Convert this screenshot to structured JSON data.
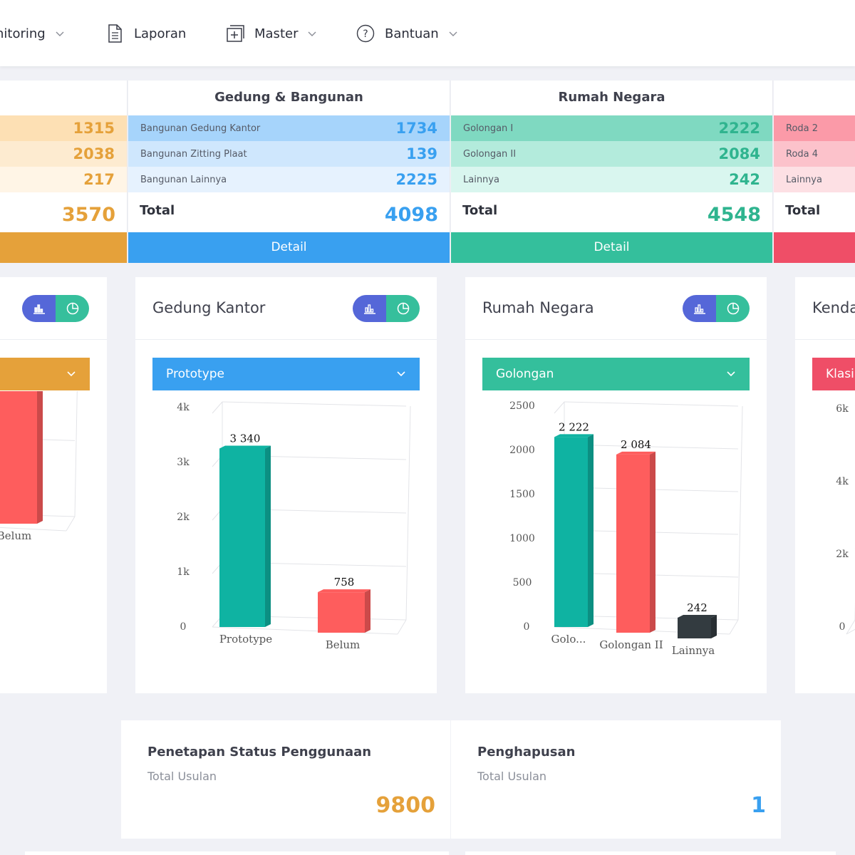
{
  "nav": {
    "monitoring": "nitoring",
    "laporan": "Laporan",
    "master": "Master",
    "bantuan": "Bantuan"
  },
  "summary": {
    "left": {
      "values": [
        "1315",
        "2038",
        "217"
      ],
      "total": "3570"
    },
    "gedung": {
      "title": "Gedung & Bangunan",
      "rows": [
        {
          "label": "Bangunan Gedung Kantor",
          "value": "1734"
        },
        {
          "label": "Bangunan Zitting Plaat",
          "value": "139"
        },
        {
          "label": "Bangunan Lainnya",
          "value": "2225"
        }
      ],
      "total_label": "Total",
      "total": "4098",
      "detail": "Detail"
    },
    "rumah": {
      "title": "Rumah Negara",
      "rows": [
        {
          "label": "Golongan I",
          "value": "2222"
        },
        {
          "label": "Golongan II",
          "value": "2084"
        },
        {
          "label": "Lainnya",
          "value": "242"
        }
      ],
      "total_label": "Total",
      "total": "4548",
      "detail": "Detail"
    },
    "kendaraan": {
      "rows": [
        {
          "label": "Roda 2"
        },
        {
          "label": "Roda 4"
        },
        {
          "label": "Lainnya"
        }
      ],
      "total_label": "Total"
    }
  },
  "charts": {
    "gedung": {
      "title": "Gedung Kantor",
      "dropdown": "Prototype"
    },
    "rumah": {
      "title": "Rumah Negara",
      "dropdown": "Golongan"
    },
    "kendaraan": {
      "title": "Kenda",
      "dropdown": "Klasi"
    }
  },
  "bottom": {
    "psp": {
      "title": "Penetapan Status Penggunaan",
      "sub": "Total Usulan",
      "value": "9800"
    },
    "hapus": {
      "title": "Penghapusan",
      "sub": "Total Usulan",
      "value": "1"
    }
  },
  "colors": {
    "orange": "#e5a13a",
    "blue": "#39a0f0",
    "green": "#34bf9c",
    "red": "#ef4e67",
    "teal_bar": "#0fb3a2",
    "red_bar": "#fe5d5d",
    "dark_bar": "#333b40"
  },
  "chart_data": [
    {
      "type": "bar",
      "categories": [
        "Belum"
      ],
      "values": [
        847
      ],
      "xlabel": "",
      "ylabel": ""
    },
    {
      "type": "bar",
      "title": "Gedung Kantor",
      "categories": [
        "Prototype",
        "Belum"
      ],
      "values": [
        3340,
        758
      ],
      "data_labels": [
        "3 340",
        "758"
      ],
      "yticks": [
        "0",
        "1k",
        "2k",
        "3k",
        "4k"
      ],
      "ylim": [
        0,
        4000
      ],
      "colors": [
        "#0fb3a2",
        "#fe5d5d"
      ]
    },
    {
      "type": "bar",
      "title": "Rumah Negara",
      "categories": [
        "Golo...",
        "Golongan II",
        "Lainnya"
      ],
      "values": [
        2222,
        2084,
        242
      ],
      "data_labels": [
        "2 222",
        "2 084",
        "242"
      ],
      "yticks": [
        "0",
        "500",
        "1000",
        "1500",
        "2000",
        "2500"
      ],
      "ylim": [
        0,
        2500
      ],
      "colors": [
        "#0fb3a2",
        "#fe5d5d",
        "#333b40"
      ]
    },
    {
      "type": "bar",
      "title": "Kenda",
      "yticks": [
        "0",
        "2k",
        "4k",
        "6k"
      ],
      "ylim": [
        0,
        6000
      ]
    }
  ]
}
